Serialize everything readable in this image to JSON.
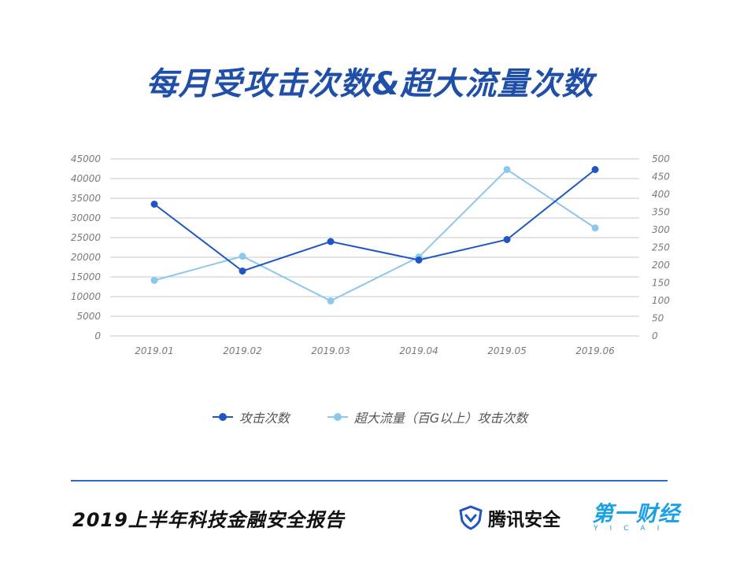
{
  "header": {
    "title": "每月受攻击次数&超大流量次数"
  },
  "chart_data": {
    "type": "line",
    "title": "每月受攻击次数&超大流量次数",
    "categories": [
      "2019.01",
      "2019.02",
      "2019.03",
      "2019.04",
      "2019.05",
      "2019.06"
    ],
    "left_axis": {
      "ylim": [
        0,
        45000
      ],
      "ticks": [
        "0",
        "5000",
        "10000",
        "15000",
        "20000",
        "25000",
        "30000",
        "35000",
        "40000",
        "45000"
      ]
    },
    "right_axis": {
      "ylim": [
        0,
        500
      ],
      "ticks": [
        "0",
        "50",
        "100",
        "150",
        "200",
        "250",
        "300",
        "350",
        "400",
        "450",
        "500"
      ]
    },
    "grid": true,
    "legend_position": "bottom",
    "series": [
      {
        "name": "攻击次数",
        "axis": "left",
        "color": "#1f56c4",
        "values": [
          33500,
          16500,
          24000,
          19300,
          24500,
          42300
        ]
      },
      {
        "name": "超大流量（百G以上）攻击次数",
        "axis": "right",
        "color": "#8cc8ee",
        "values": [
          157,
          225,
          99,
          223,
          470,
          305
        ]
      }
    ]
  },
  "footer": {
    "title": "2019上半年科技金融安全报告",
    "brand_tencent": "腾讯安全",
    "brand_yicai": "第一财经",
    "brand_yicai_sub": "YICAI"
  }
}
